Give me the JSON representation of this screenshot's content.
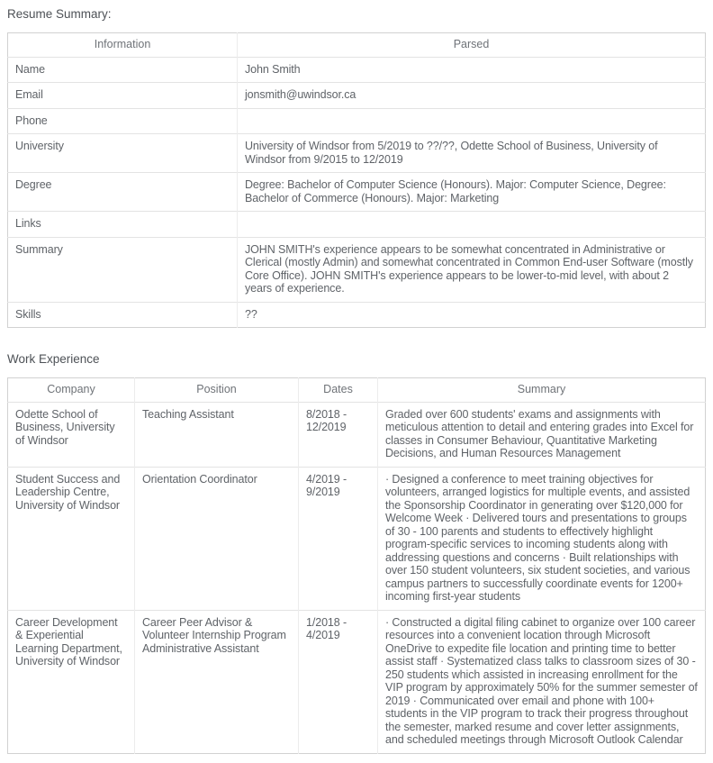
{
  "sections": {
    "resume_summary_title": "Resume Summary:",
    "work_experience_title": "Work Experience"
  },
  "colors": {
    "body_text": "#5f6368",
    "header_text": "#6f7378",
    "outer_border": "#d1d1d1",
    "row_divider": "#e3e3e3",
    "background": "#ffffff"
  },
  "resume_table": {
    "headers": [
      "Information",
      "Parsed"
    ],
    "rows": [
      {
        "info": "Name",
        "parsed": "John Smith"
      },
      {
        "info": "Email",
        "parsed": "jonsmith@uwindsor.ca"
      },
      {
        "info": "Phone",
        "parsed": ""
      },
      {
        "info": "University",
        "parsed": "University of Windsor from 5/2019 to ??/??, Odette School of Business, University of Windsor from 9/2015 to 12/2019"
      },
      {
        "info": "Degree",
        "parsed": "Degree: Bachelor of Computer Science (Honours). Major: Computer Science, Degree: Bachelor of Commerce (Honours). Major: Marketing"
      },
      {
        "info": "Links",
        "parsed": ""
      },
      {
        "info": "Summary",
        "parsed": "JOHN SMITH's experience appears to be somewhat concentrated in Administrative or Clerical (mostly Admin) and somewhat concentrated in Common End-user Software (mostly Core Office). JOHN SMITH's experience appears to be lower-to-mid level, with about 2 years of experience."
      },
      {
        "info": "Skills",
        "parsed": "??"
      }
    ]
  },
  "work_table": {
    "headers": [
      "Company",
      "Position",
      "Dates",
      "Summary"
    ],
    "rows": [
      {
        "company": "Odette School of Business, University of Windsor",
        "position": "Teaching Assistant",
        "dates": "8/2018 - 12/2019",
        "summary": "Graded over 600 students' exams and assignments with meticulous attention to detail and entering grades into Excel for classes in Consumer Behaviour, Quantitative Marketing Decisions, and Human Resources Management"
      },
      {
        "company": "Student Success and Leadership Centre, University of Windsor",
        "position": "Orientation Coordinator",
        "dates": "4/2019 - 9/2019",
        "summary": "· Designed a conference to meet training objectives for volunteers, arranged logistics for multiple events, and assisted the Sponsorship Coordinator in generating over $120,000 for Welcome Week · Delivered tours and presentations to groups of 30 - 100 parents and students to effectively highlight program-specific services to incoming students along with addressing questions and concerns · Built relationships with over 150 student volunteers, six student societies, and various campus partners to successfully coordinate events for 1200+ incoming first-year students"
      },
      {
        "company": "Career Development & Experiential Learning Department, University of Windsor",
        "position": "Career Peer Advisor & Volunteer Internship Program Administrative Assistant",
        "dates": "1/2018 - 4/2019",
        "summary": "· Constructed a digital filing cabinet to organize over 100 career resources into a convenient location through Microsoft OneDrive to expedite file location and printing time to better assist staff · Systematized class talks to classroom sizes of 30 - 250 students which assisted in increasing enrollment for the VIP program by approximately 50% for the summer semester of 2019 · Communicated over email and phone with 100+ students in the VIP program to track their progress throughout the semester, marked resume and cover letter assignments, and scheduled meetings through Microsoft Outlook Calendar"
      }
    ]
  }
}
